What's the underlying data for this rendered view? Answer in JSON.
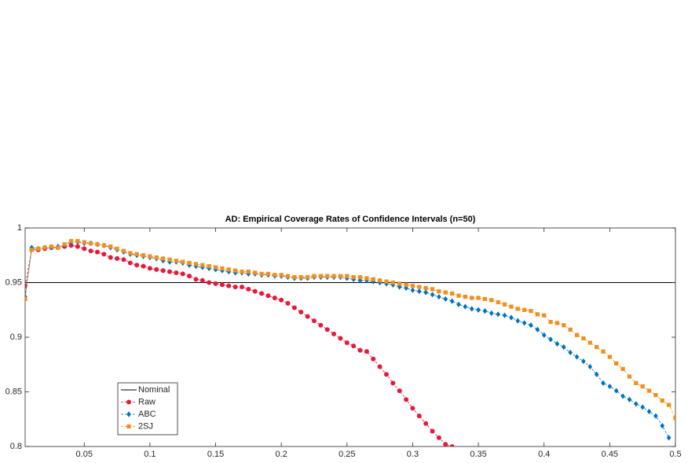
{
  "chart_data": {
    "type": "line",
    "title": "AD: Empirical Coverage Rates of Confidence Intervals (n=50)",
    "x": [
      0.005,
      0.01,
      0.015,
      0.02,
      0.025,
      0.03,
      0.035,
      0.04,
      0.045,
      0.05,
      0.055,
      0.06,
      0.065,
      0.07,
      0.075,
      0.08,
      0.085,
      0.09,
      0.095,
      0.1,
      0.105,
      0.11,
      0.115,
      0.12,
      0.125,
      0.13,
      0.135,
      0.14,
      0.145,
      0.15,
      0.155,
      0.16,
      0.165,
      0.17,
      0.175,
      0.18,
      0.185,
      0.19,
      0.195,
      0.2,
      0.205,
      0.21,
      0.215,
      0.22,
      0.225,
      0.23,
      0.235,
      0.24,
      0.245,
      0.25,
      0.255,
      0.26,
      0.265,
      0.27,
      0.275,
      0.28,
      0.285,
      0.29,
      0.295,
      0.3,
      0.305,
      0.31,
      0.315,
      0.32,
      0.325,
      0.33,
      0.335,
      0.34,
      0.345,
      0.35,
      0.355,
      0.36,
      0.365,
      0.37,
      0.375,
      0.38,
      0.385,
      0.39,
      0.395,
      0.4,
      0.405,
      0.41,
      0.415,
      0.42,
      0.425,
      0.43,
      0.435,
      0.44,
      0.445,
      0.45,
      0.455,
      0.46,
      0.465,
      0.47,
      0.475,
      0.48,
      0.485,
      0.49,
      0.495,
      0.5
    ],
    "reference_line": {
      "name": "Nominal",
      "value": 0.95,
      "color": "#000000"
    },
    "series": [
      {
        "name": "Raw",
        "color": "#e41a3c",
        "marker": "circle",
        "values": [
          0.947,
          0.98,
          0.98,
          0.981,
          0.982,
          0.982,
          0.983,
          0.984,
          0.983,
          0.981,
          0.979,
          0.978,
          0.976,
          0.973,
          0.972,
          0.971,
          0.968,
          0.966,
          0.965,
          0.963,
          0.962,
          0.961,
          0.96,
          0.959,
          0.958,
          0.956,
          0.953,
          0.952,
          0.95,
          0.949,
          0.948,
          0.947,
          0.946,
          0.946,
          0.944,
          0.942,
          0.94,
          0.938,
          0.936,
          0.934,
          0.931,
          0.927,
          0.923,
          0.919,
          0.915,
          0.911,
          0.907,
          0.903,
          0.899,
          0.895,
          0.892,
          0.888,
          0.887,
          0.88,
          0.873,
          0.866,
          0.858,
          0.851,
          0.843,
          0.835,
          0.828,
          0.821,
          0.814,
          0.808,
          0.802,
          0.8,
          null,
          null,
          null,
          null,
          null,
          null,
          null,
          null,
          null,
          null,
          null,
          null,
          null,
          null,
          null,
          null,
          null,
          null,
          null,
          null,
          null,
          null,
          null,
          null,
          null,
          null,
          null,
          null,
          null,
          null,
          null,
          null,
          null,
          null
        ]
      },
      {
        "name": "ABC",
        "color": "#0072bd",
        "marker": "diamond",
        "values": [
          0.937,
          0.982,
          0.981,
          0.982,
          0.982,
          0.983,
          0.984,
          0.987,
          0.987,
          0.986,
          0.986,
          0.985,
          0.984,
          0.982,
          0.98,
          0.978,
          0.976,
          0.975,
          0.974,
          0.973,
          0.972,
          0.97,
          0.969,
          0.969,
          0.968,
          0.966,
          0.965,
          0.964,
          0.963,
          0.962,
          0.961,
          0.96,
          0.959,
          0.959,
          0.958,
          0.958,
          0.957,
          0.957,
          0.956,
          0.956,
          0.955,
          0.954,
          0.954,
          0.954,
          0.955,
          0.955,
          0.955,
          0.955,
          0.955,
          0.954,
          0.953,
          0.952,
          0.952,
          0.951,
          0.95,
          0.949,
          0.948,
          0.946,
          0.945,
          0.943,
          0.942,
          0.941,
          0.939,
          0.937,
          0.935,
          0.933,
          0.93,
          0.928,
          0.926,
          0.925,
          0.924,
          0.922,
          0.921,
          0.92,
          0.918,
          0.915,
          0.913,
          0.911,
          0.907,
          0.902,
          0.898,
          0.894,
          0.891,
          0.886,
          0.882,
          0.878,
          0.873,
          0.866,
          0.858,
          0.855,
          0.851,
          0.846,
          0.843,
          0.839,
          0.836,
          0.832,
          0.828,
          0.819,
          0.808,
          null
        ]
      },
      {
        "name": "2SJ",
        "color": "#f28e1c",
        "marker": "square",
        "values": [
          0.935,
          0.98,
          0.981,
          0.982,
          0.983,
          0.982,
          0.985,
          0.988,
          0.988,
          0.987,
          0.986,
          0.985,
          0.984,
          0.983,
          0.981,
          0.979,
          0.977,
          0.976,
          0.975,
          0.974,
          0.973,
          0.972,
          0.971,
          0.97,
          0.969,
          0.968,
          0.967,
          0.966,
          0.965,
          0.964,
          0.963,
          0.962,
          0.961,
          0.96,
          0.96,
          0.959,
          0.958,
          0.958,
          0.957,
          0.957,
          0.956,
          0.955,
          0.955,
          0.955,
          0.956,
          0.956,
          0.956,
          0.956,
          0.956,
          0.956,
          0.955,
          0.955,
          0.954,
          0.953,
          0.952,
          0.951,
          0.95,
          0.949,
          0.948,
          0.947,
          0.946,
          0.945,
          0.944,
          0.942,
          0.941,
          0.94,
          0.938,
          0.937,
          0.936,
          0.936,
          0.935,
          0.934,
          0.932,
          0.93,
          0.928,
          0.926,
          0.925,
          0.924,
          0.921,
          0.92,
          0.914,
          0.913,
          0.911,
          0.907,
          0.902,
          0.899,
          0.895,
          0.891,
          0.887,
          0.882,
          0.876,
          0.871,
          0.864,
          0.858,
          0.855,
          0.851,
          0.847,
          0.842,
          0.838,
          0.826
        ]
      }
    ],
    "xlim": [
      0.005,
      0.5
    ],
    "ylim": [
      0.8,
      1
    ],
    "xticks": [
      0.05,
      0.1,
      0.15,
      0.2,
      0.25,
      0.3,
      0.35,
      0.4,
      0.45,
      0.5
    ],
    "yticks": [
      0.8,
      0.85,
      0.9,
      0.95,
      1
    ],
    "legend": "lower left"
  }
}
